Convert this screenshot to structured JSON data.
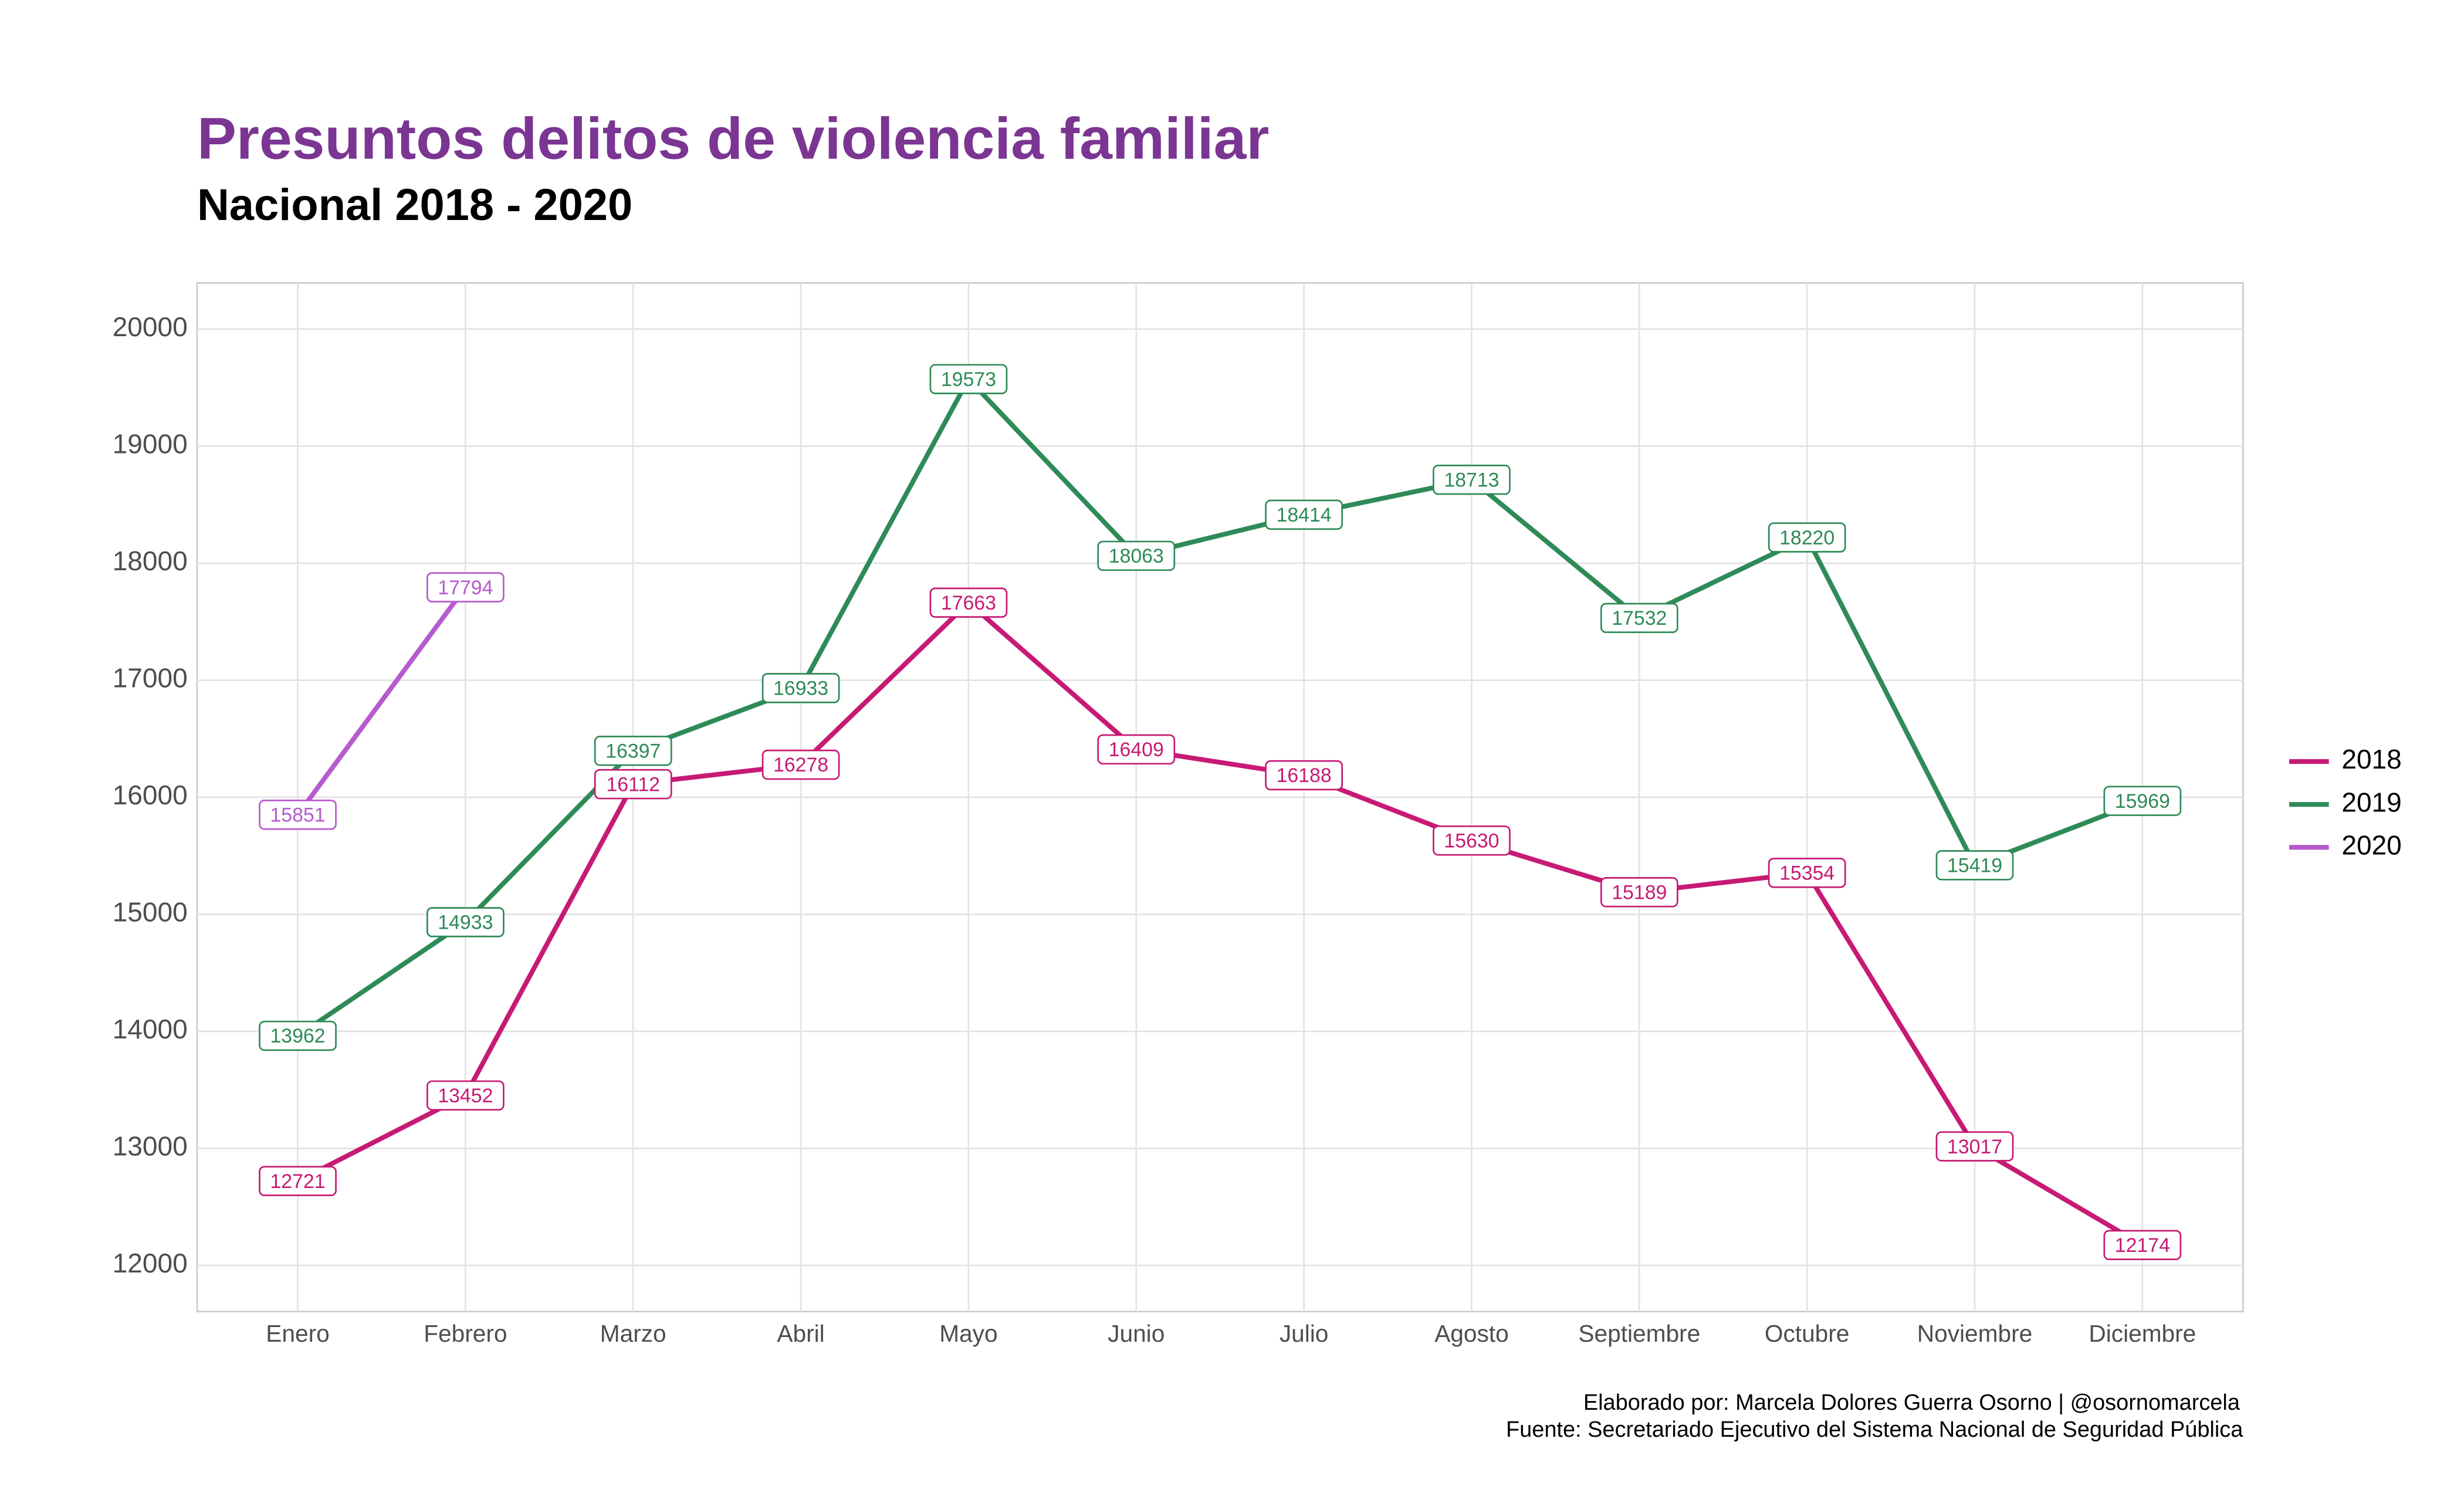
{
  "chart_data": {
    "type": "line",
    "title": "Presuntos delitos de violencia familiar",
    "subtitle": "Nacional 2018 - 2020",
    "caption": [
      "Elaborado por: Marcela Dolores Guerra Osorno | @osornomarcela",
      "Fuente: Secretariado Ejecutivo del Sistema Nacional de Seguridad Pública"
    ],
    "categories": [
      "Enero",
      "Febrero",
      "Marzo",
      "Abril",
      "Mayo",
      "Junio",
      "Julio",
      "Agosto",
      "Septiembre",
      "Octubre",
      "Noviembre",
      "Diciembre"
    ],
    "series": [
      {
        "name": "2018",
        "color": "#c71a74",
        "values": [
          12721,
          13452,
          16112,
          16278,
          17663,
          16409,
          16188,
          15630,
          15189,
          15354,
          13017,
          12174
        ]
      },
      {
        "name": "2019",
        "color": "#2e8b57",
        "values": [
          13962,
          14933,
          16397,
          16933,
          19573,
          18063,
          18414,
          18713,
          17532,
          18220,
          15419,
          15969
        ]
      },
      {
        "name": "2020",
        "color": "#b65acd",
        "values": [
          15851,
          17794,
          null,
          null,
          null,
          null,
          null,
          null,
          null,
          null,
          null,
          null
        ]
      }
    ],
    "ylim": [
      11606,
      20394
    ],
    "yticks": [
      12000,
      13000,
      14000,
      15000,
      16000,
      17000,
      18000,
      19000,
      20000
    ],
    "grid": true,
    "legend": "right"
  }
}
